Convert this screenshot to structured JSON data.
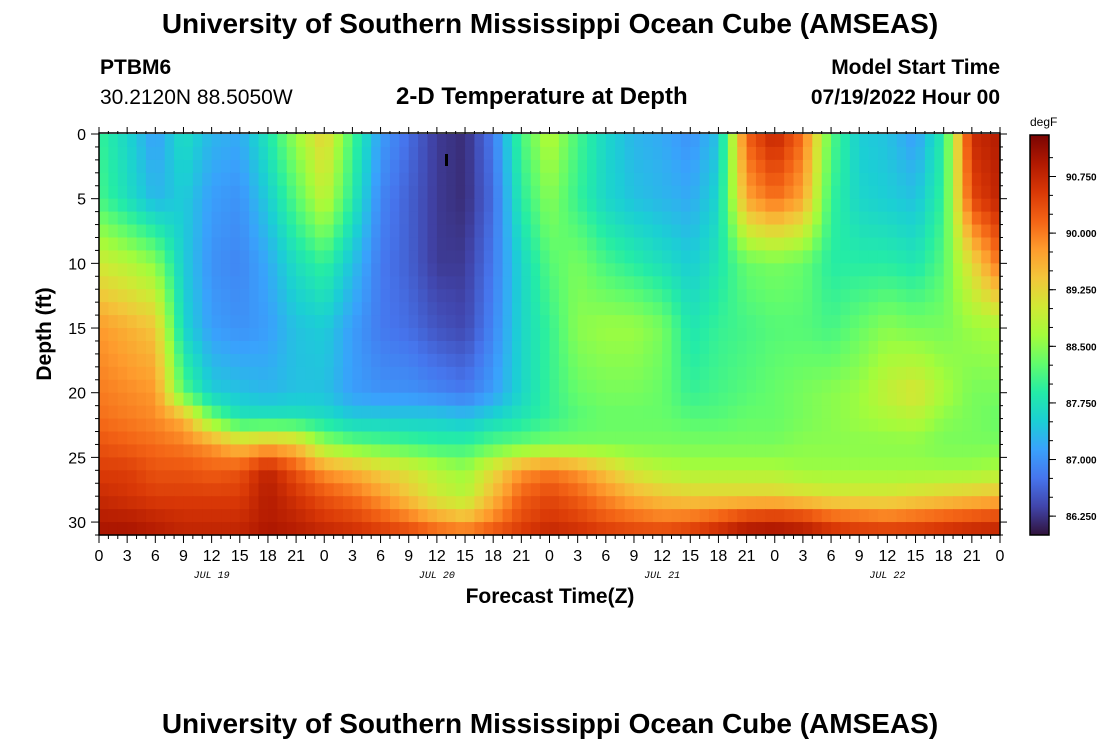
{
  "header": {
    "title": "University of Southern Mississippi Ocean Cube (AMSEAS)",
    "station": "PTBM6",
    "coords": "30.2120N  88.5050W",
    "subtitle": "2-D Temperature at Depth",
    "start_label": "Model Start Time",
    "start_value": "07/19/2022 Hour 00"
  },
  "footer": {
    "title": "University of Southern Mississippi Ocean Cube (AMSEAS)"
  },
  "chart_data": {
    "type": "heatmap",
    "xlabel": "Forecast Time(Z)",
    "ylabel": "Depth (ft)",
    "x_tick_labels": [
      "0",
      "3",
      "6",
      "9",
      "12",
      "15",
      "18",
      "21",
      "0",
      "3",
      "6",
      "9",
      "12",
      "15",
      "18",
      "21",
      "0",
      "3",
      "6",
      "9",
      "12",
      "15",
      "18",
      "21",
      "0",
      "3",
      "6",
      "9",
      "12",
      "15",
      "18",
      "21",
      "0"
    ],
    "day_labels": [
      "JUL 19",
      "JUL 20",
      "JUL 21",
      "JUL 22"
    ],
    "xlim_hours": [
      0,
      96
    ],
    "y_ticks": [
      0,
      5,
      10,
      15,
      20,
      25,
      30
    ],
    "ylim": [
      0,
      31
    ],
    "y_inverted": true,
    "colorbar": {
      "unit": "degF",
      "ticks": [
        "90.750",
        "90.000",
        "89.250",
        "88.500",
        "87.750",
        "87.000",
        "86.250"
      ],
      "tick_values": [
        90.75,
        90.0,
        89.25,
        88.5,
        87.75,
        87.0,
        86.25
      ],
      "range": [
        86.0,
        91.3
      ],
      "colors": [
        "#30123b",
        "#4145ab",
        "#4675ed",
        "#39a2fc",
        "#1bcfd4",
        "#24eca6",
        "#61fc6c",
        "#a4fc3b",
        "#d1e834",
        "#f3c63a",
        "#fe9b2d",
        "#f36315",
        "#d93806",
        "#b11901",
        "#7a0403"
      ]
    },
    "depth_rows_ft": [
      0,
      5,
      10,
      15,
      20,
      22,
      24,
      26,
      28,
      30,
      31
    ],
    "time_cols_hours": [
      0,
      3,
      6,
      9,
      12,
      15,
      18,
      21,
      24,
      27,
      30,
      33,
      36,
      39,
      42,
      45,
      48,
      51,
      54,
      57,
      60,
      63,
      66,
      69,
      72,
      75,
      78,
      81,
      84,
      87,
      90,
      93,
      96
    ],
    "values_degF": [
      [
        88.0,
        87.6,
        87.1,
        87.7,
        87.3,
        87.2,
        87.8,
        88.6,
        89.3,
        88.1,
        87.1,
        86.7,
        86.3,
        86.2,
        86.8,
        88.1,
        88.8,
        88.1,
        87.6,
        87.3,
        87.2,
        87.0,
        87.4,
        90.2,
        90.8,
        90.1,
        88.2,
        87.5,
        87.4,
        87.1,
        87.9,
        90.7,
        90.9
      ],
      [
        88.1,
        87.7,
        87.3,
        87.5,
        87.1,
        87.0,
        87.5,
        88.2,
        88.9,
        87.9,
        86.9,
        86.6,
        86.3,
        86.2,
        86.7,
        87.9,
        88.5,
        88.0,
        87.6,
        87.4,
        87.3,
        87.2,
        87.6,
        89.7,
        90.1,
        89.7,
        88.0,
        87.6,
        87.5,
        87.4,
        88.0,
        90.4,
        90.8
      ],
      [
        89.0,
        88.8,
        88.5,
        87.5,
        87.0,
        86.9,
        87.2,
        87.7,
        88.0,
        87.4,
        86.8,
        86.6,
        86.3,
        86.3,
        86.8,
        87.6,
        88.2,
        88.4,
        88.1,
        87.9,
        87.7,
        87.5,
        87.8,
        88.3,
        88.4,
        88.3,
        87.9,
        87.9,
        87.9,
        87.8,
        88.2,
        89.2,
        90.1
      ],
      [
        89.8,
        89.6,
        89.4,
        87.6,
        87.1,
        87.0,
        87.1,
        87.4,
        87.5,
        87.1,
        86.8,
        86.7,
        86.5,
        86.4,
        86.9,
        87.6,
        88.0,
        88.5,
        88.6,
        88.6,
        88.4,
        87.8,
        88.0,
        88.1,
        88.2,
        88.2,
        88.1,
        88.3,
        88.5,
        88.4,
        88.4,
        88.6,
        88.7
      ],
      [
        90.0,
        89.9,
        89.8,
        88.2,
        87.5,
        87.4,
        87.3,
        87.4,
        87.4,
        87.1,
        87.0,
        87.0,
        86.9,
        86.8,
        87.1,
        87.6,
        88.0,
        88.3,
        88.4,
        88.4,
        88.3,
        88.0,
        88.1,
        88.2,
        88.3,
        88.4,
        88.5,
        88.6,
        88.9,
        89.1,
        88.7,
        88.4,
        88.4
      ],
      [
        90.1,
        90.0,
        89.9,
        89.6,
        88.4,
        87.8,
        87.8,
        87.8,
        87.7,
        87.5,
        87.5,
        87.5,
        87.5,
        87.4,
        87.6,
        87.8,
        88.0,
        88.2,
        88.3,
        88.3,
        88.3,
        88.2,
        88.2,
        88.3,
        88.3,
        88.4,
        88.5,
        88.6,
        88.7,
        88.8,
        88.5,
        88.4,
        88.3
      ],
      [
        90.3,
        90.2,
        90.1,
        90.0,
        89.8,
        89.4,
        89.6,
        89.4,
        88.6,
        88.3,
        88.2,
        88.1,
        88.0,
        88.0,
        88.2,
        88.3,
        88.4,
        88.4,
        88.4,
        88.4,
        88.4,
        88.4,
        88.4,
        88.4,
        88.4,
        88.5,
        88.5,
        88.5,
        88.5,
        88.5,
        88.4,
        88.4,
        88.4
      ],
      [
        90.5,
        90.5,
        90.3,
        90.3,
        90.2,
        90.3,
        90.8,
        90.3,
        89.8,
        89.6,
        89.3,
        89.1,
        88.8,
        88.6,
        89.2,
        89.8,
        90.0,
        89.8,
        89.4,
        89.0,
        88.8,
        88.7,
        88.7,
        88.7,
        88.7,
        88.6,
        88.6,
        88.6,
        88.6,
        88.6,
        88.6,
        88.6,
        88.7
      ],
      [
        90.7,
        90.6,
        90.5,
        90.5,
        90.5,
        90.5,
        90.9,
        90.6,
        90.3,
        90.1,
        89.8,
        89.4,
        89.0,
        88.8,
        89.5,
        90.2,
        90.4,
        90.2,
        89.9,
        89.6,
        89.4,
        89.3,
        89.3,
        89.3,
        89.3,
        89.2,
        89.1,
        89.1,
        89.1,
        89.2,
        89.3,
        89.4,
        89.5
      ],
      [
        90.9,
        90.9,
        90.8,
        90.7,
        90.7,
        90.7,
        90.9,
        90.8,
        90.6,
        90.5,
        90.3,
        90.1,
        89.8,
        89.6,
        90.0,
        90.4,
        90.6,
        90.5,
        90.3,
        90.2,
        90.1,
        90.2,
        90.4,
        90.7,
        90.8,
        90.7,
        90.4,
        90.3,
        90.2,
        90.3,
        90.4,
        90.5,
        90.6
      ],
      [
        91.0,
        91.0,
        90.9,
        90.8,
        90.8,
        90.8,
        91.0,
        90.9,
        90.8,
        90.7,
        90.6,
        90.5,
        90.3,
        90.2,
        90.4,
        90.6,
        90.8,
        90.7,
        90.6,
        90.5,
        90.5,
        90.6,
        90.8,
        91.0,
        91.0,
        90.9,
        90.7,
        90.6,
        90.6,
        90.6,
        90.7,
        90.8,
        90.8
      ]
    ]
  }
}
